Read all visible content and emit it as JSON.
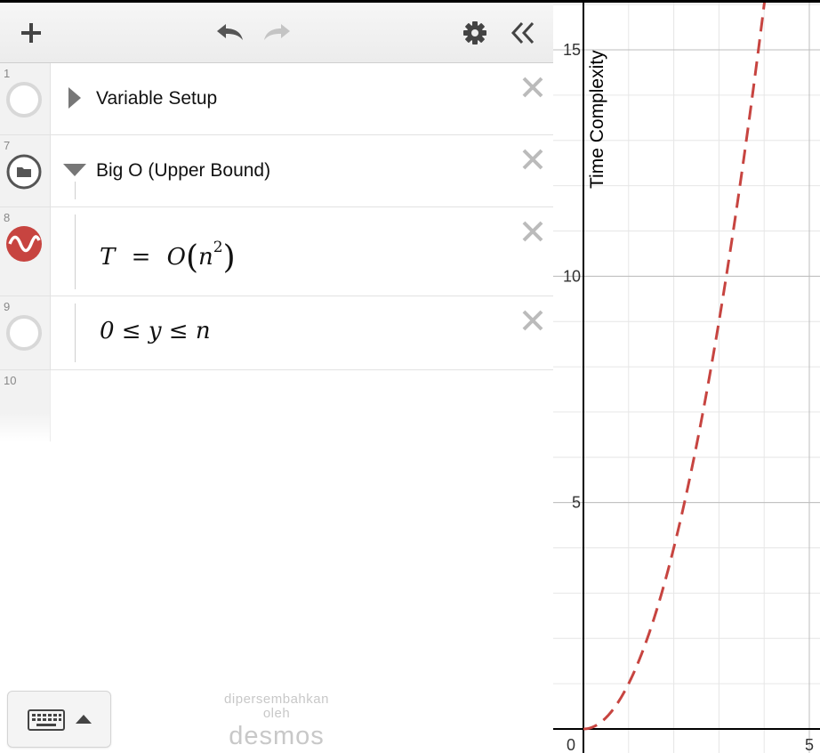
{
  "toolbar": {
    "add_icon": "plus-icon",
    "undo_icon": "undo-icon",
    "redo_icon": "redo-icon",
    "settings_icon": "gear-icon",
    "collapse_icon": "double-chevron-left-icon"
  },
  "expressions": [
    {
      "index": "1",
      "type": "folder",
      "collapsed": true,
      "label": "Variable Setup"
    },
    {
      "index": "7",
      "type": "folder",
      "collapsed": false,
      "label": "Big O (Upper Bound)"
    },
    {
      "index": "8",
      "type": "expression",
      "latex": "T = O(n^2)",
      "parts": {
        "lhs": "T",
        "eq": "=",
        "fn": "O",
        "base": "n",
        "exp": "2"
      },
      "color": "#c74440",
      "style": "dashed"
    },
    {
      "index": "9",
      "type": "expression",
      "latex": "0 ≤ y ≤ n",
      "text": "0 ≤ y ≤ n"
    },
    {
      "index": "10",
      "type": "empty"
    }
  ],
  "footer": {
    "keyboard_icon": "keyboard-icon",
    "powered_line1": "dipersembahkan",
    "powered_line2": "oleh",
    "brand": "desmos"
  },
  "graph": {
    "ylabel": "Time Complexity",
    "y_ticks": [
      "15",
      "10",
      "5"
    ],
    "x_ticks": [
      "0",
      "5"
    ],
    "xlim": [
      0,
      5.4
    ],
    "ylim": [
      0,
      16
    ],
    "curve_color": "#c74440"
  }
}
